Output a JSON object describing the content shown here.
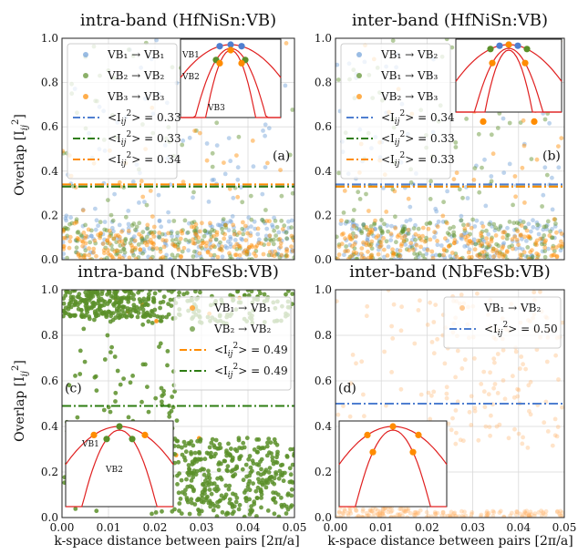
{
  "figure": {
    "xlabel": "k-space distance between pairs [2π/a]",
    "ylabel": "Overlap [I",
    "ylabel_sub": "ij",
    "ylabel_sup": "2",
    "ylabel_close": "]"
  },
  "chart_data": [
    {
      "type": "scatter",
      "title": "intra-band (HfNiSn:VB)",
      "panel_label": "(a)",
      "xlim": [
        0,
        0.05
      ],
      "ylim": [
        0,
        1.0
      ],
      "yticks": [
        "0.0",
        "0.2",
        "0.4",
        "0.6",
        "0.8",
        "1.0"
      ],
      "xticks": [],
      "grid": true,
      "legend_position": "top-left",
      "series": [
        {
          "name": "VB₁ → VB₁",
          "color": "#6f9fd8",
          "kind": "points"
        },
        {
          "name": "VB₂ → VB₂",
          "color": "#5a8f29",
          "kind": "points"
        },
        {
          "name": "VB₃ → VB₃",
          "color": "#ff8c00",
          "kind": "points"
        }
      ],
      "means": [
        {
          "label_pre": "<I",
          "label_sub": "ij",
          "label_sup": "2",
          "label_post": "> = 0.33",
          "value": 0.33,
          "color": "#4f7fd0"
        },
        {
          "label_pre": "<I",
          "label_sub": "ij",
          "label_sup": "2",
          "label_post": "> = 0.33",
          "value": 0.33,
          "color": "#2e7d12"
        },
        {
          "label_pre": "<I",
          "label_sub": "ij",
          "label_sup": "2",
          "label_post": "> = 0.34",
          "value": 0.34,
          "color": "#ff8c00"
        }
      ],
      "inset_labels": [
        "VB1",
        "VB2",
        "VB3"
      ]
    },
    {
      "type": "scatter",
      "title": "inter-band (HfNiSn:VB)",
      "panel_label": "(b)",
      "xlim": [
        0,
        0.05
      ],
      "ylim": [
        0,
        1.0
      ],
      "yticks": [
        "0.0",
        "0.2",
        "0.4",
        "0.6",
        "0.8",
        "1.0"
      ],
      "xticks": [],
      "grid": true,
      "legend_position": "top-left",
      "series": [
        {
          "name": "VB₁ → VB₂",
          "color": "#6f9fd8",
          "kind": "points"
        },
        {
          "name": "VB₁ → VB₃",
          "color": "#5a8f29",
          "kind": "points"
        },
        {
          "name": "VB₂ → VB₃",
          "color": "#ff8c00",
          "kind": "points"
        }
      ],
      "means": [
        {
          "label_pre": "<I",
          "label_sub": "ij",
          "label_sup": "2",
          "label_post": "> = 0.34",
          "value": 0.34,
          "color": "#4f7fd0"
        },
        {
          "label_pre": "<I",
          "label_sub": "ij",
          "label_sup": "2",
          "label_post": "> = 0.33",
          "value": 0.33,
          "color": "#2e7d12"
        },
        {
          "label_pre": "<I",
          "label_sub": "ij",
          "label_sup": "2",
          "label_post": "> = 0.33",
          "value": 0.33,
          "color": "#ff8c00"
        }
      ],
      "inset_labels": []
    },
    {
      "type": "scatter",
      "title": "intra-band (NbFeSb:VB)",
      "panel_label": "(c)",
      "xlim": [
        0,
        0.05
      ],
      "ylim": [
        0,
        1.0
      ],
      "yticks": [
        "0.0",
        "0.2",
        "0.4",
        "0.6",
        "0.8",
        "1.0"
      ],
      "xticks": [
        "0.00",
        "0.01",
        "0.02",
        "0.03",
        "0.04",
        "0.05"
      ],
      "grid": true,
      "legend_position": "top-right",
      "series": [
        {
          "name": "VB₁ → VB₁",
          "color": "#ff8c00",
          "kind": "points"
        },
        {
          "name": "VB₂ → VB₂",
          "color": "#5a8f29",
          "kind": "points"
        }
      ],
      "means": [
        {
          "label_pre": "<I",
          "label_sub": "ij",
          "label_sup": "2",
          "label_post": "> = 0.49",
          "value": 0.49,
          "color": "#ff8c00"
        },
        {
          "label_pre": "<I",
          "label_sub": "ij",
          "label_sup": "2",
          "label_post": "> = 0.49",
          "value": 0.49,
          "color": "#2e7d12"
        }
      ],
      "inset_labels": [
        "VB1",
        "VB2"
      ]
    },
    {
      "type": "scatter",
      "title": "inter-band (NbFeSb:VB)",
      "panel_label": "(d)",
      "xlim": [
        0,
        0.05
      ],
      "ylim": [
        0,
        1.0
      ],
      "yticks": [
        "0.0",
        "0.2",
        "0.4",
        "0.6",
        "0.8",
        "1.0"
      ],
      "xticks": [
        "0.00",
        "0.01",
        "0.02",
        "0.03",
        "0.04",
        "0.05"
      ],
      "grid": true,
      "legend_position": "top-right",
      "series": [
        {
          "name": "VB₁ → VB₂",
          "color": "#ffb366",
          "kind": "points"
        }
      ],
      "means": [
        {
          "label_pre": "<I",
          "label_sub": "ij",
          "label_sup": "2",
          "label_post": "> = 0.50",
          "value": 0.5,
          "color": "#4f7fd0"
        }
      ],
      "inset_labels": []
    }
  ]
}
